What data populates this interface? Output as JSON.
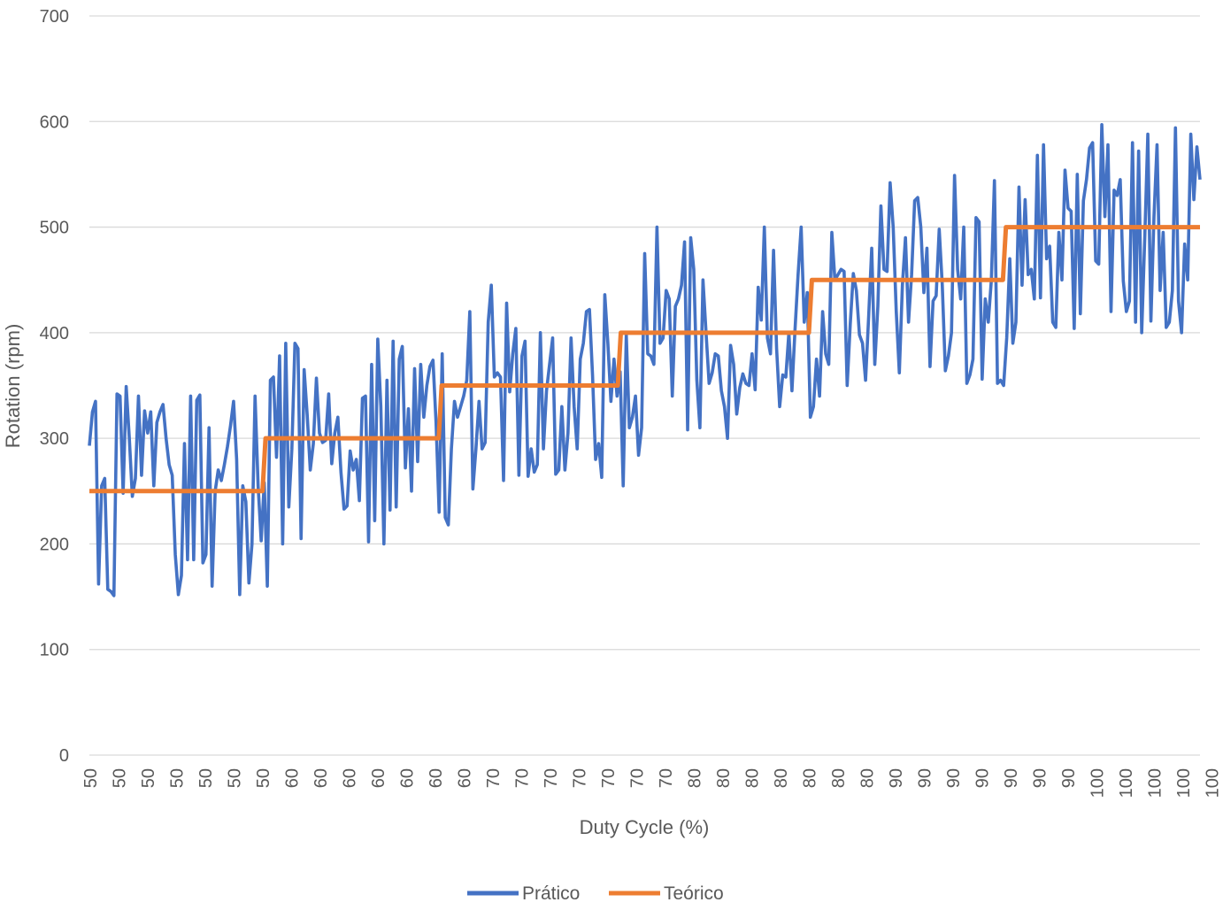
{
  "chart_data": {
    "type": "line",
    "title": "",
    "xlabel": "Duty Cycle (%)",
    "ylabel": "Rotation (rpm)",
    "ylim": [
      0,
      700
    ],
    "y_ticks": [
      0,
      100,
      200,
      300,
      400,
      500,
      600,
      700
    ],
    "grid": "horizontal",
    "legend_position": "bottom",
    "x_tick_labels": [
      "50",
      "50",
      "50",
      "50",
      "50",
      "50",
      "50",
      "60",
      "60",
      "60",
      "60",
      "60",
      "60",
      "60",
      "70",
      "70",
      "70",
      "70",
      "70",
      "70",
      "70",
      "80",
      "80",
      "80",
      "80",
      "80",
      "80",
      "80",
      "90",
      "90",
      "90",
      "90",
      "90",
      "90",
      "90",
      "100",
      "100",
      "100",
      "100",
      "100",
      "100",
      "100"
    ],
    "categories_note_count": 420,
    "series": [
      {
        "name": "Prático",
        "color": "#4472c4",
        "values": [
          293,
          325,
          335,
          162,
          255,
          262,
          157,
          155,
          151,
          342,
          340,
          248,
          349,
          301,
          245,
          262,
          340,
          265,
          326,
          305,
          325,
          255,
          315,
          325,
          332,
          300,
          275,
          265,
          190,
          152,
          170,
          295,
          185,
          340,
          185,
          336,
          341,
          182,
          190,
          310,
          160,
          250,
          270,
          260,
          275,
          292,
          312,
          335,
          280,
          152,
          255,
          240,
          163,
          200,
          340,
          255,
          203,
          258,
          160,
          355,
          358,
          282,
          378,
          200,
          390,
          235,
          290,
          390,
          385,
          205,
          365,
          322,
          270,
          295,
          357,
          305,
          296,
          298,
          342,
          276,
          305,
          320,
          268,
          233,
          236,
          288,
          270,
          280,
          241,
          338,
          340,
          202,
          370,
          222,
          394,
          330,
          200,
          355,
          232,
          392,
          235,
          375,
          387,
          272,
          328,
          250,
          366,
          278,
          370,
          320,
          350,
          368,
          374,
          315,
          230,
          380,
          225,
          218,
          290,
          335,
          320,
          330,
          340,
          355,
          420,
          252,
          290,
          335,
          290,
          296,
          410,
          445,
          358,
          362,
          358,
          260,
          428,
          344,
          380,
          404,
          265,
          378,
          392,
          264,
          290,
          268,
          275,
          400,
          290,
          345,
          370,
          395,
          266,
          270,
          330,
          270,
          305,
          395,
          330,
          290,
          375,
          390,
          420,
          422,
          360,
          280,
          295,
          263,
          436,
          390,
          335,
          375,
          340,
          363,
          255,
          398,
          310,
          320,
          340,
          284,
          310,
          475,
          380,
          378,
          370,
          500,
          390,
          395,
          440,
          432,
          340,
          425,
          432,
          445,
          486,
          308,
          490,
          460,
          355,
          310,
          450,
          400,
          352,
          362,
          380,
          378,
          345,
          330,
          300,
          388,
          370,
          323,
          348,
          361,
          352,
          350,
          380,
          346,
          443,
          412,
          500,
          395,
          380,
          478,
          385,
          330,
          360,
          358,
          400,
          345,
          403,
          455,
          500,
          410,
          438,
          320,
          330,
          375,
          340,
          420,
          380,
          370,
          495,
          450,
          455,
          460,
          458,
          350,
          408,
          456,
          440,
          398,
          390,
          355,
          415,
          480,
          370,
          425,
          520,
          460,
          458,
          542,
          500,
          420,
          362,
          445,
          490,
          410,
          455,
          525,
          528,
          500,
          438,
          480,
          368,
          430,
          435,
          498,
          445,
          364,
          378,
          400,
          549,
          460,
          432,
          500,
          352,
          360,
          375,
          509,
          505,
          356,
          432,
          410,
          450,
          544,
          352,
          355,
          350,
          395,
          470,
          390,
          410,
          538,
          445,
          526,
          455,
          460,
          432,
          568,
          433,
          578,
          470,
          482,
          410,
          405,
          495,
          450,
          554,
          518,
          515,
          404,
          550,
          418,
          525,
          545,
          575,
          580,
          468,
          465,
          597,
          510,
          578,
          420,
          535,
          530,
          545,
          449,
          420,
          430,
          580,
          410,
          572,
          400,
          490,
          588,
          411,
          510,
          578,
          440,
          495,
          405,
          410,
          440,
          594,
          430,
          400,
          484,
          450,
          588,
          526,
          576,
          545
        ]
      },
      {
        "name": "Teórico",
        "color": "#ed7d31",
        "values": [
          250,
          250,
          250,
          250,
          250,
          250,
          250,
          250,
          250,
          250,
          250,
          250,
          250,
          250,
          250,
          250,
          250,
          250,
          250,
          250,
          250,
          250,
          250,
          250,
          250,
          250,
          250,
          250,
          250,
          250,
          250,
          250,
          250,
          250,
          250,
          250,
          250,
          250,
          250,
          250,
          250,
          250,
          250,
          250,
          250,
          250,
          250,
          250,
          250,
          250,
          250,
          250,
          250,
          250,
          250,
          250,
          250,
          250,
          250,
          300,
          300,
          300,
          300,
          300,
          300,
          300,
          300,
          300,
          300,
          300,
          300,
          300,
          300,
          300,
          300,
          300,
          300,
          300,
          300,
          300,
          300,
          300,
          300,
          300,
          300,
          300,
          300,
          300,
          300,
          300,
          300,
          300,
          300,
          300,
          300,
          300,
          300,
          300,
          300,
          300,
          300,
          300,
          300,
          300,
          300,
          300,
          300,
          300,
          300,
          300,
          300,
          300,
          300,
          300,
          300,
          300,
          300,
          300,
          350,
          350,
          350,
          350,
          350,
          350,
          350,
          350,
          350,
          350,
          350,
          350,
          350,
          350,
          350,
          350,
          350,
          350,
          350,
          350,
          350,
          350,
          350,
          350,
          350,
          350,
          350,
          350,
          350,
          350,
          350,
          350,
          350,
          350,
          350,
          350,
          350,
          350,
          350,
          350,
          350,
          350,
          350,
          350,
          350,
          350,
          350,
          350,
          350,
          350,
          350,
          350,
          350,
          350,
          350,
          350,
          350,
          350,
          350,
          350,
          400,
          400,
          400,
          400,
          400,
          400,
          400,
          400,
          400,
          400,
          400,
          400,
          400,
          400,
          400,
          400,
          400,
          400,
          400,
          400,
          400,
          400,
          400,
          400,
          400,
          400,
          400,
          400,
          400,
          400,
          400,
          400,
          400,
          400,
          400,
          400,
          400,
          400,
          400,
          400,
          400,
          400,
          400,
          400,
          400,
          400,
          400,
          400,
          400,
          400,
          400,
          400,
          400,
          400,
          400,
          400,
          400,
          400,
          400,
          400,
          400,
          400,
          400,
          400,
          450,
          450,
          450,
          450,
          450,
          450,
          450,
          450,
          450,
          450,
          450,
          450,
          450,
          450,
          450,
          450,
          450,
          450,
          450,
          450,
          450,
          450,
          450,
          450,
          450,
          450,
          450,
          450,
          450,
          450,
          450,
          450,
          450,
          450,
          450,
          450,
          450,
          450,
          450,
          450,
          450,
          450,
          450,
          450,
          450,
          450,
          450,
          450,
          450,
          450,
          450,
          450,
          450,
          450,
          450,
          450,
          450,
          450,
          450,
          450,
          450,
          450,
          450,
          450,
          450,
          500,
          500,
          500,
          500,
          500,
          500,
          500,
          500,
          500,
          500,
          500,
          500,
          500,
          500,
          500,
          500,
          500,
          500,
          500,
          500,
          500,
          500,
          500,
          500,
          500,
          500,
          500,
          500,
          500,
          500,
          500,
          500,
          500,
          500,
          500,
          500,
          500,
          500,
          500,
          500,
          500,
          500,
          500,
          500,
          500,
          500,
          500,
          500,
          500,
          500,
          500,
          500,
          500,
          500,
          500,
          500,
          500,
          500,
          500,
          500,
          500,
          500,
          500,
          500,
          500,
          500
        ]
      }
    ]
  }
}
